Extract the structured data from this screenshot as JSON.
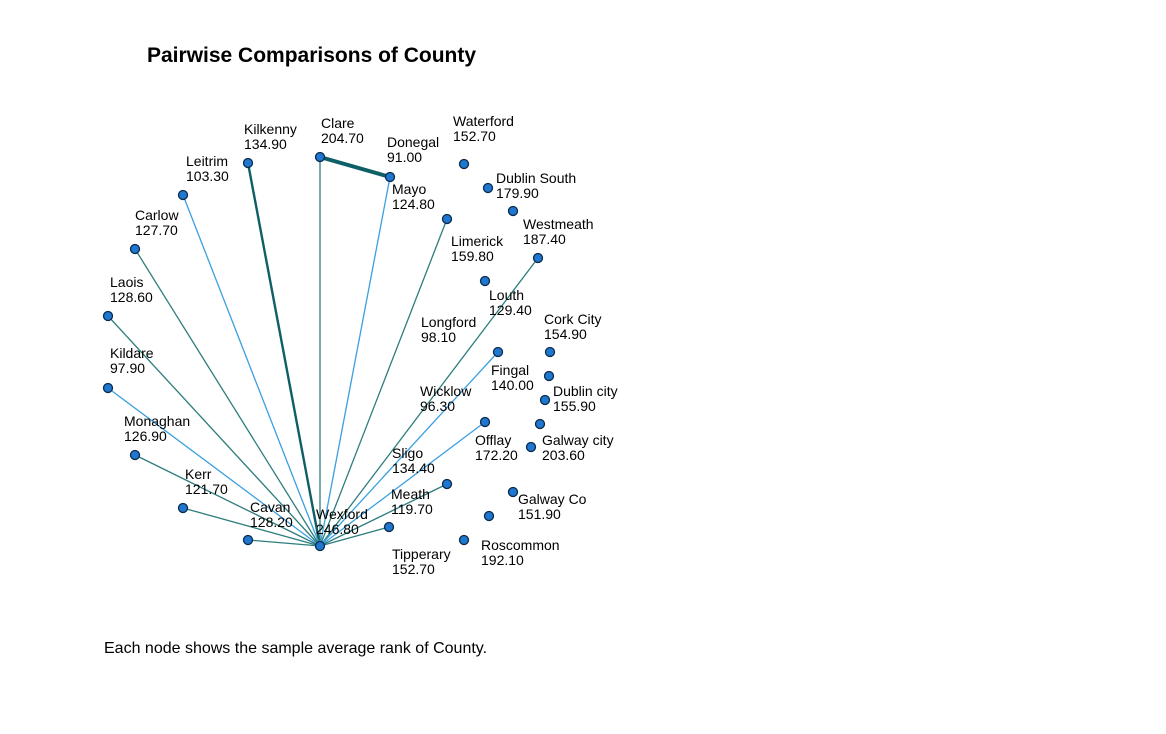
{
  "title": "Pairwise Comparisons of County",
  "footnote": "Each node shows the sample average rank of County.",
  "colors": {
    "node_fill": "#1f77d0",
    "node_stroke": "#0a2a4a",
    "edge_significant": "#0e5f66",
    "edge_teal": "#2e7d7d",
    "edge_blue": "#3aa0e0"
  },
  "nodes": [
    {
      "id": "clare",
      "name": "Clare",
      "rank": "204.70"
    },
    {
      "id": "donegal",
      "name": "Donegal",
      "rank": "91.00"
    },
    {
      "id": "waterford",
      "name": "Waterford",
      "rank": "152.70"
    },
    {
      "id": "kilkenny",
      "name": "Kilkenny",
      "rank": "134.90"
    },
    {
      "id": "leitrim",
      "name": "Leitrim",
      "rank": "103.30"
    },
    {
      "id": "dublin_south",
      "name": "Dublin South",
      "rank": "179.90"
    },
    {
      "id": "mayo",
      "name": "Mayo",
      "rank": "124.80"
    },
    {
      "id": "carlow",
      "name": "Carlow",
      "rank": "127.70"
    },
    {
      "id": "westmeath",
      "name": "Westmeath",
      "rank": "187.40"
    },
    {
      "id": "limerick",
      "name": "Limerick",
      "rank": "159.80"
    },
    {
      "id": "laois",
      "name": "Laois",
      "rank": "128.60"
    },
    {
      "id": "louth",
      "name": "Louth",
      "rank": "129.40"
    },
    {
      "id": "longford",
      "name": "Longford",
      "rank": "98.10"
    },
    {
      "id": "cork_city",
      "name": "Cork City",
      "rank": "154.90"
    },
    {
      "id": "kildare",
      "name": "Kildare",
      "rank": "97.90"
    },
    {
      "id": "fingal",
      "name": "Fingal",
      "rank": "140.00"
    },
    {
      "id": "dublin_city",
      "name": "Dublin city",
      "rank": "155.90"
    },
    {
      "id": "wicklow",
      "name": "Wicklow",
      "rank": "96.30"
    },
    {
      "id": "monaghan",
      "name": "Monaghan",
      "rank": "126.90"
    },
    {
      "id": "offlay",
      "name": "Offlay",
      "rank": "172.20"
    },
    {
      "id": "galway_city",
      "name": "Galway city",
      "rank": "203.60"
    },
    {
      "id": "sligo",
      "name": "Sligo",
      "rank": "134.40"
    },
    {
      "id": "kerr",
      "name": "Kerr",
      "rank": "121.70"
    },
    {
      "id": "meath",
      "name": "Meath",
      "rank": "119.70"
    },
    {
      "id": "galway_co",
      "name": "Galway Co",
      "rank": "151.90"
    },
    {
      "id": "cavan",
      "name": "Cavan",
      "rank": "128.20"
    },
    {
      "id": "wexford",
      "name": "Wexford",
      "rank": "246.80"
    },
    {
      "id": "roscommon",
      "name": "Roscommon",
      "rank": "192.10"
    },
    {
      "id": "tipperary",
      "name": "Tipperary",
      "rank": "152.70"
    }
  ],
  "edges": [
    {
      "from": "clare",
      "to": "donegal",
      "style": "significant"
    },
    {
      "from": "kilkenny",
      "to": "wexford",
      "style": "significant"
    },
    {
      "from": "clare",
      "to": "wexford",
      "style": "teal"
    },
    {
      "from": "leitrim",
      "to": "wexford",
      "style": "blue"
    },
    {
      "from": "donegal",
      "to": "wexford",
      "style": "blue"
    },
    {
      "from": "mayo",
      "to": "wexford",
      "style": "teal"
    },
    {
      "from": "carlow",
      "to": "wexford",
      "style": "teal"
    },
    {
      "from": "laois",
      "to": "wexford",
      "style": "teal"
    },
    {
      "from": "limerick",
      "to": "wexford",
      "style": "teal"
    },
    {
      "from": "kildare",
      "to": "wexford",
      "style": "blue"
    },
    {
      "from": "longford",
      "to": "wexford",
      "style": "blue"
    },
    {
      "from": "wicklow",
      "to": "wexford",
      "style": "blue"
    },
    {
      "from": "monaghan",
      "to": "wexford",
      "style": "teal"
    },
    {
      "from": "sligo",
      "to": "wexford",
      "style": "teal"
    },
    {
      "from": "kerr",
      "to": "wexford",
      "style": "teal"
    },
    {
      "from": "meath",
      "to": "wexford",
      "style": "teal"
    },
    {
      "from": "cavan",
      "to": "wexford",
      "style": "teal"
    }
  ]
}
